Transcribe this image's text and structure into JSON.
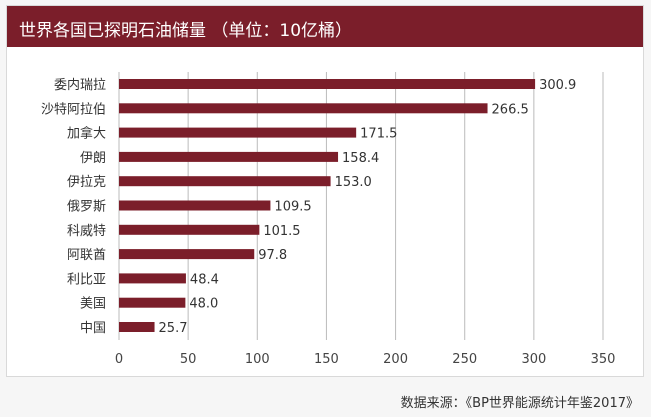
{
  "source": "数据来源：《BP世界能源统计年鉴2017》",
  "colors": {
    "bar": "#7b1e2a",
    "header": "#7b1e2a",
    "grid": "#bbbbbb"
  },
  "chart_data": {
    "type": "bar",
    "orientation": "horizontal",
    "title": "世界各国已探明石油储量 （单位：10亿桶）",
    "categories": [
      "委内瑞拉",
      "沙特阿拉伯",
      "加拿大",
      "伊朗",
      "伊拉克",
      "俄罗斯",
      "科威特",
      "阿联酋",
      "利比亚",
      "美国",
      "中国"
    ],
    "values": [
      300.9,
      266.5,
      171.5,
      158.4,
      153.0,
      109.5,
      101.5,
      97.8,
      48.4,
      48.0,
      25.7
    ],
    "value_labels": [
      "300.9",
      "266.5",
      "171.5",
      "158.4",
      "153.0",
      "109.5",
      "101.5",
      "97.8",
      "48.4",
      "48.0",
      "25.7"
    ],
    "xlim": [
      0,
      350
    ],
    "xticks": [
      "0",
      "50",
      "100",
      "150",
      "200",
      "250",
      "300",
      "350"
    ],
    "grid": "vertical",
    "legend": "none"
  }
}
